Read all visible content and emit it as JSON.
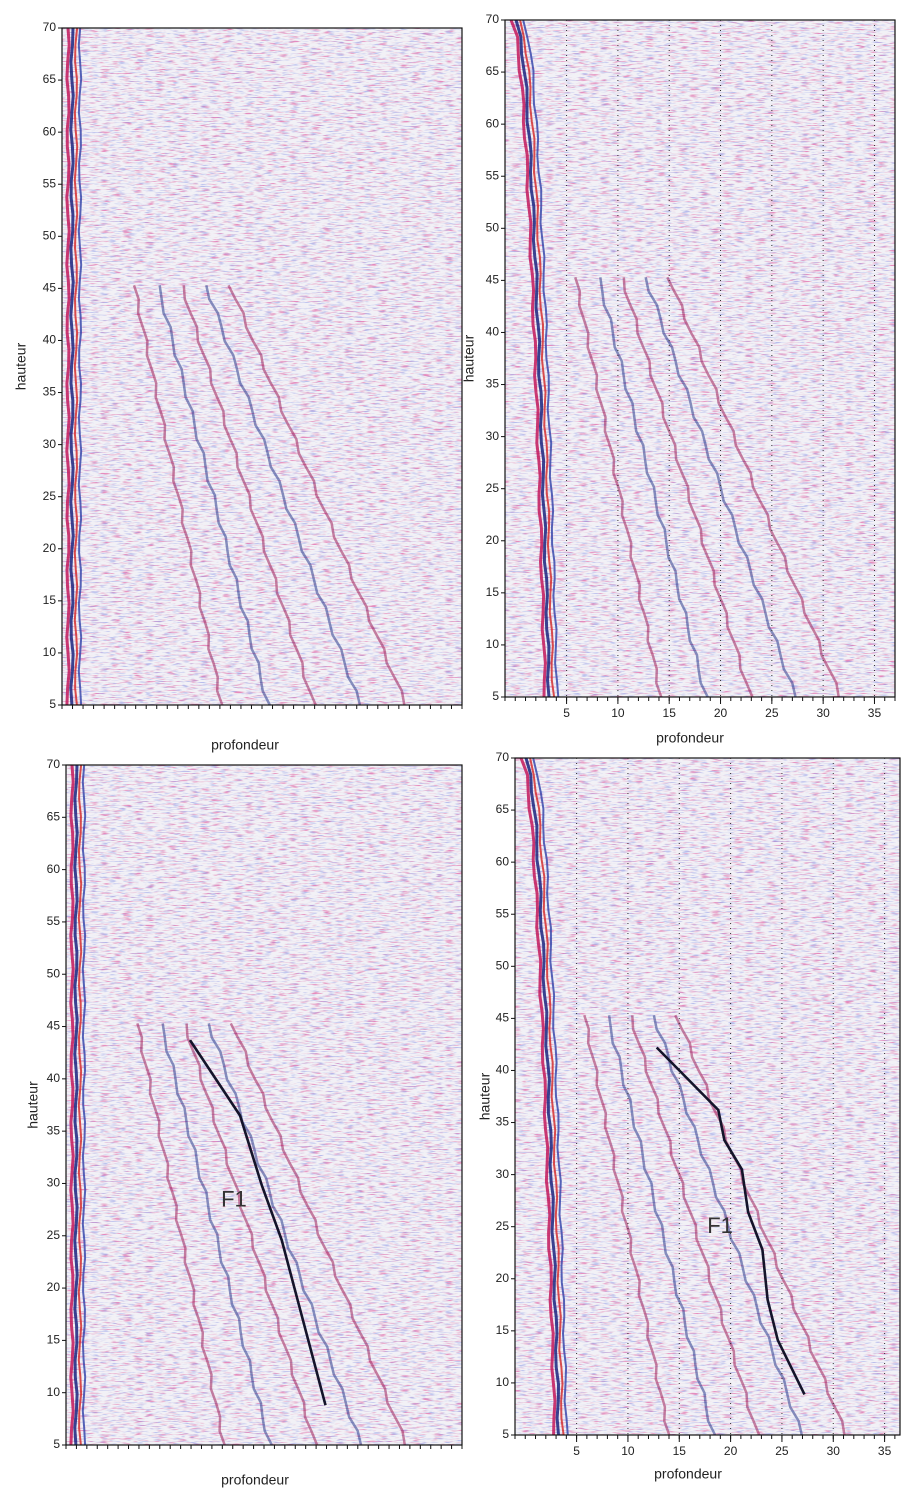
{
  "chart_data": [
    {
      "type": "radargram",
      "ylabel": "hauteur",
      "xlabel": "profondeur",
      "xlim": [
        0,
        38
      ],
      "ylim": [
        5,
        70
      ],
      "yticks": [
        5,
        10,
        15,
        20,
        25,
        30,
        35,
        40,
        45,
        50,
        55,
        60,
        65,
        70
      ]
    },
    {
      "type": "radargram",
      "ylabel": "hauteur",
      "xlabel": "profondeur",
      "xlim": [
        -1,
        37
      ],
      "ylim": [
        5,
        70
      ],
      "yticks": [
        5,
        10,
        15,
        20,
        25,
        30,
        35,
        40,
        45,
        50,
        55,
        60,
        65,
        70
      ],
      "xticks": [
        5,
        10,
        15,
        20,
        25,
        30,
        35
      ]
    },
    {
      "type": "radargram",
      "ylabel": "hauteur",
      "xlabel": "profondeur",
      "xlim": [
        0,
        38
      ],
      "ylim": [
        5,
        70
      ],
      "yticks": [
        5,
        10,
        15,
        20,
        25,
        30,
        35,
        40,
        45,
        50,
        55,
        60,
        65,
        70
      ],
      "fault": {
        "label": "F1",
        "x": [
          11.9,
          16.7,
          18.8,
          20.7,
          24.9
        ],
        "y": [
          43.7,
          36.5,
          29.8,
          24.6,
          8.8
        ]
      }
    },
    {
      "type": "radargram",
      "ylabel": "hauteur",
      "xlabel": "profondeur",
      "xlim": [
        -1,
        36.5
      ],
      "ylim": [
        5,
        70
      ],
      "yticks": [
        5,
        10,
        15,
        20,
        25,
        30,
        35,
        40,
        45,
        50,
        55,
        60,
        65,
        70
      ],
      "xticks": [
        5,
        10,
        15,
        20,
        25,
        30,
        35
      ],
      "fault": {
        "label": "F1",
        "x": [
          12.8,
          18.8,
          19.4,
          21.1,
          21.7,
          23.1,
          23.6,
          24.6,
          27.2
        ],
        "y": [
          42.2,
          36.2,
          33.3,
          30.5,
          26.4,
          22.8,
          18.0,
          14.1,
          8.9
        ]
      }
    }
  ]
}
